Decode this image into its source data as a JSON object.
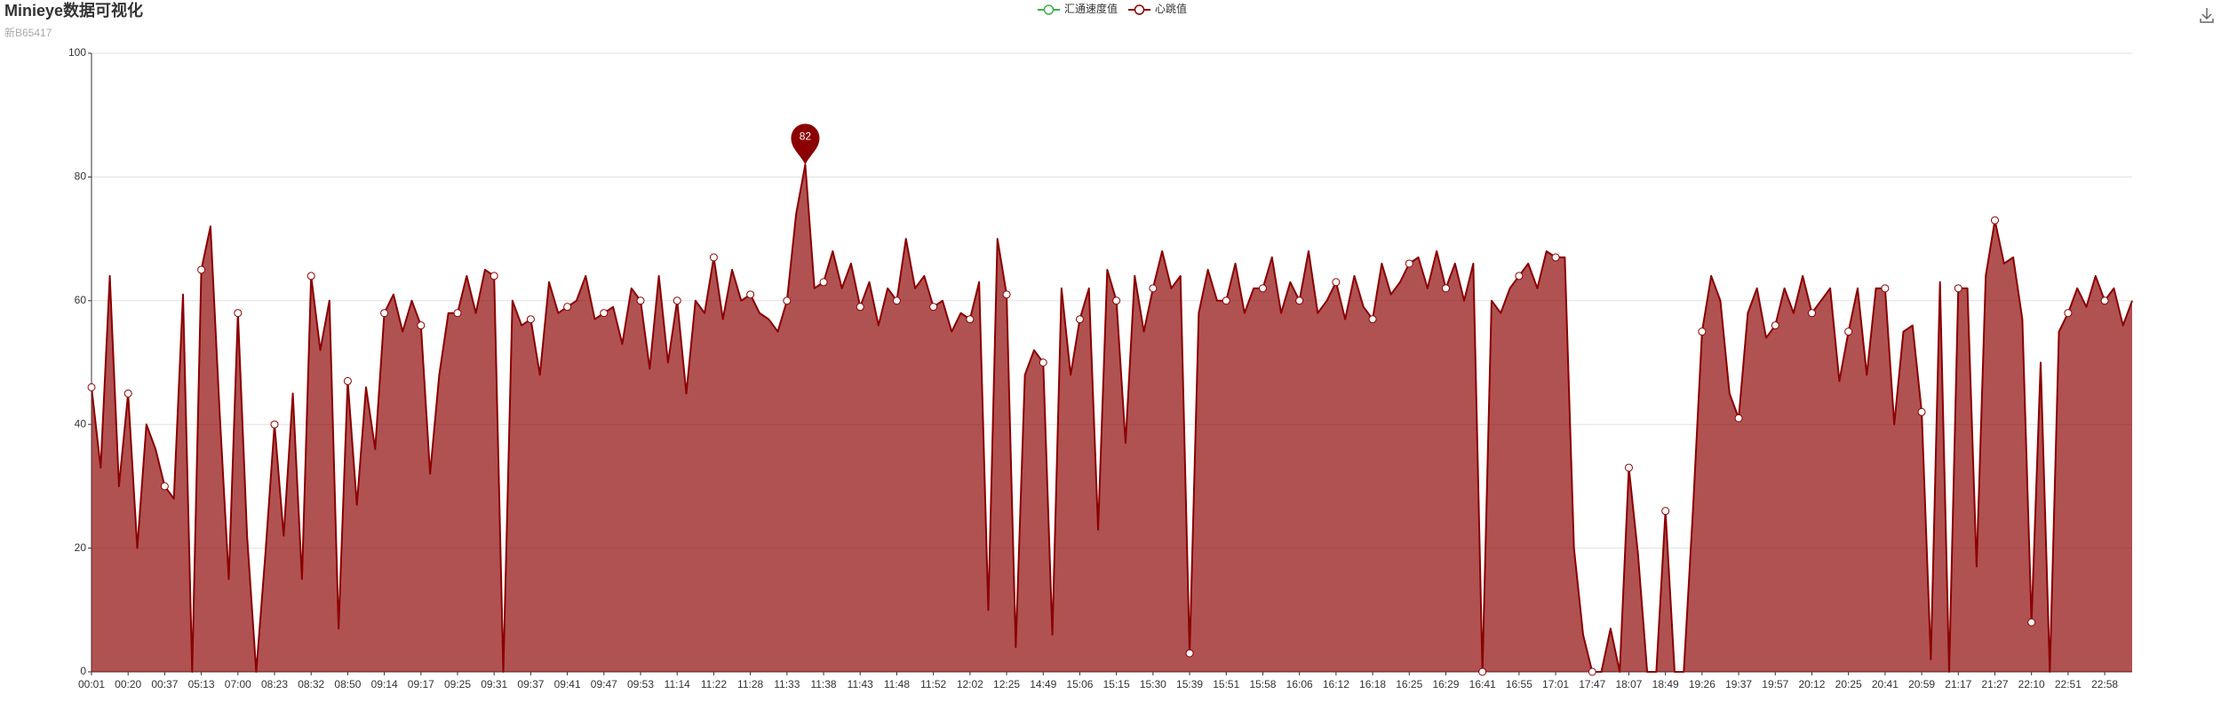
{
  "chart_data": {
    "type": "line",
    "area": true,
    "title": "Minieye数据可视化",
    "subtitle": "新B65417",
    "categories": [
      "00:01",
      null,
      null,
      null,
      "00:20",
      null,
      null,
      null,
      "00:37",
      null,
      null,
      null,
      "05:13",
      null,
      null,
      null,
      "07:00",
      null,
      null,
      null,
      "08:23",
      null,
      null,
      null,
      "08:32",
      null,
      null,
      null,
      "08:50",
      null,
      null,
      null,
      "09:14",
      null,
      null,
      null,
      "09:17",
      null,
      null,
      null,
      "09:25",
      null,
      null,
      null,
      "09:31",
      null,
      null,
      null,
      "09:37",
      null,
      null,
      null,
      "09:41",
      null,
      null,
      null,
      "09:47",
      null,
      null,
      null,
      "09:53",
      null,
      null,
      null,
      "11:14",
      null,
      null,
      null,
      "11:22",
      null,
      null,
      null,
      "11:28",
      null,
      null,
      null,
      "11:33",
      null,
      null,
      null,
      "11:38",
      null,
      null,
      null,
      "11:43",
      null,
      null,
      null,
      "11:48",
      null,
      null,
      null,
      "11:52",
      null,
      null,
      null,
      "12:02",
      null,
      null,
      null,
      "12:25",
      null,
      null,
      null,
      "14:49",
      null,
      null,
      null,
      "15:06",
      null,
      null,
      null,
      "15:15",
      null,
      null,
      null,
      "15:30",
      null,
      null,
      null,
      "15:39",
      null,
      null,
      null,
      "15:51",
      null,
      null,
      null,
      "15:58",
      null,
      null,
      null,
      "16:06",
      null,
      null,
      null,
      "16:12",
      null,
      null,
      null,
      "16:18",
      null,
      null,
      null,
      "16:25",
      null,
      null,
      null,
      "16:29",
      null,
      null,
      null,
      "16:41",
      null,
      null,
      null,
      "16:55",
      null,
      null,
      null,
      "17:01",
      null,
      null,
      null,
      "17:47",
      null,
      null,
      null,
      "18:07",
      null,
      null,
      null,
      "18:49",
      null,
      null,
      null,
      "19:26",
      null,
      null,
      null,
      "19:37",
      null,
      null,
      null,
      "19:57",
      null,
      null,
      null,
      "20:12",
      null,
      null,
      null,
      "20:25",
      null,
      null,
      null,
      "20:41",
      null,
      null,
      null,
      "20:59",
      null,
      null,
      null,
      "21:17",
      null,
      null,
      null,
      "21:27",
      null,
      null,
      null,
      "22:10",
      null,
      null,
      null,
      "22:51",
      null,
      null,
      null,
      "22:58",
      null,
      null,
      null
    ],
    "series": [
      {
        "name": "汇通速度值",
        "color": "#3cb44b",
        "values": [
          null,
          null,
          null,
          null,
          null,
          null,
          null,
          null,
          null,
          null,
          null,
          null,
          null,
          null,
          null,
          null,
          null,
          null,
          null,
          null,
          null,
          null,
          null,
          null,
          null,
          null,
          null,
          null,
          null,
          null,
          null,
          null,
          null,
          null,
          null,
          null,
          null,
          null,
          null,
          null,
          null,
          null,
          null,
          null,
          null,
          null,
          null,
          null,
          null,
          null,
          null,
          null,
          null,
          null,
          null,
          null,
          null,
          null,
          null,
          null,
          null,
          null,
          null,
          null,
          null,
          null,
          null,
          null,
          null,
          null,
          null,
          null,
          null,
          null,
          null,
          null,
          null,
          null,
          null,
          null,
          null,
          null,
          null,
          null,
          null,
          null,
          null,
          null,
          null,
          null,
          null,
          null,
          null,
          null,
          null,
          null,
          null,
          null,
          null,
          null,
          null,
          null,
          null,
          null,
          null,
          null,
          null,
          null,
          null,
          null,
          null,
          null,
          null,
          null,
          null,
          null,
          null,
          null,
          null,
          null,
          null,
          null,
          null,
          null,
          null,
          null,
          null,
          null,
          null,
          null,
          null,
          null,
          null,
          null,
          null,
          null,
          null,
          null,
          null,
          null,
          null,
          null,
          null,
          null,
          null,
          null,
          null,
          null,
          null,
          null,
          null,
          null,
          null,
          null,
          null,
          null,
          null,
          null,
          null,
          null,
          null,
          null,
          null,
          null,
          null,
          null,
          null,
          null,
          null,
          null,
          null,
          null,
          null,
          null,
          null,
          null,
          null,
          null,
          null,
          null,
          null,
          null,
          null,
          null,
          null,
          null,
          null,
          null,
          null,
          null,
          null,
          null,
          null,
          null,
          null,
          null,
          null,
          null,
          null,
          null,
          null,
          null,
          null,
          null,
          null,
          null,
          null,
          null,
          null,
          null,
          null,
          null,
          null,
          null,
          null,
          null,
          null,
          null,
          null,
          null,
          null,
          null,
          null,
          null
        ]
      },
      {
        "name": "心跳值",
        "color": "#8b0000",
        "values": [
          46,
          33,
          64,
          30,
          45,
          20,
          40,
          36,
          30,
          28,
          61,
          0,
          65,
          72,
          42,
          15,
          58,
          22,
          0,
          19,
          40,
          22,
          45,
          15,
          64,
          52,
          60,
          7,
          47,
          27,
          46,
          36,
          58,
          61,
          55,
          60,
          56,
          32,
          48,
          58,
          58,
          64,
          58,
          65,
          64,
          0,
          60,
          56,
          57,
          48,
          63,
          58,
          59,
          60,
          64,
          57,
          58,
          59,
          53,
          62,
          60,
          49,
          64,
          50,
          60,
          45,
          60,
          58,
          67,
          57,
          65,
          60,
          61,
          58,
          57,
          55,
          60,
          74,
          82,
          62,
          63,
          68,
          62,
          66,
          59,
          63,
          56,
          62,
          60,
          70,
          62,
          64,
          59,
          60,
          55,
          58,
          57,
          63,
          10,
          70,
          61,
          4,
          48,
          52,
          50,
          6,
          62,
          48,
          57,
          62,
          23,
          65,
          60,
          37,
          64,
          55,
          62,
          68,
          62,
          64,
          3,
          58,
          65,
          60,
          60,
          66,
          58,
          62,
          62,
          67,
          58,
          63,
          60,
          68,
          58,
          60,
          63,
          57,
          64,
          59,
          57,
          66,
          61,
          63,
          66,
          67,
          62,
          68,
          62,
          66,
          60,
          66,
          0,
          60,
          58,
          62,
          64,
          66,
          62,
          68,
          67,
          67,
          20,
          6,
          0,
          0,
          7,
          0,
          33,
          19,
          0,
          0,
          26,
          0,
          0,
          26,
          55,
          64,
          60,
          45,
          41,
          58,
          62,
          54,
          56,
          62,
          58,
          64,
          58,
          60,
          62,
          47,
          55,
          62,
          48,
          62,
          62,
          40,
          55,
          56,
          42,
          2,
          63,
          0,
          62,
          62,
          17,
          64,
          73,
          66,
          67,
          57,
          8,
          50,
          0,
          55,
          58,
          62,
          59,
          64,
          60,
          62,
          56,
          60
        ]
      }
    ],
    "ylim": [
      0,
      100
    ],
    "yticks": [
      0,
      20,
      40,
      60,
      80,
      100
    ],
    "grid": true,
    "legend": "top"
  }
}
